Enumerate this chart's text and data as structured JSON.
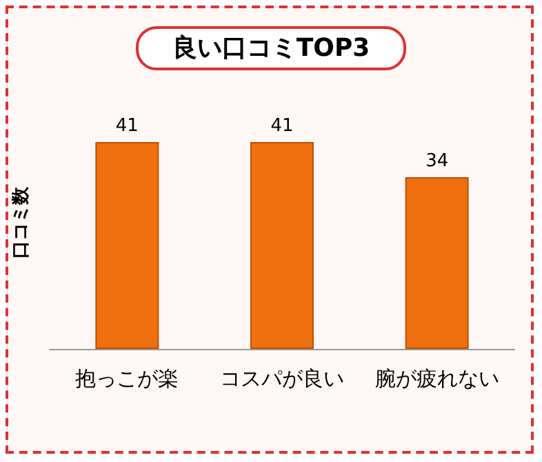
{
  "chart_data": {
    "type": "bar",
    "title": "良い口コミTOP3",
    "ylabel": "口コミ数",
    "categories": [
      "抱っこが楽",
      "コスパが良い",
      "腕が疲れない"
    ],
    "values": [
      41,
      41,
      34
    ],
    "color": "#f07010",
    "data_labels": true
  }
}
